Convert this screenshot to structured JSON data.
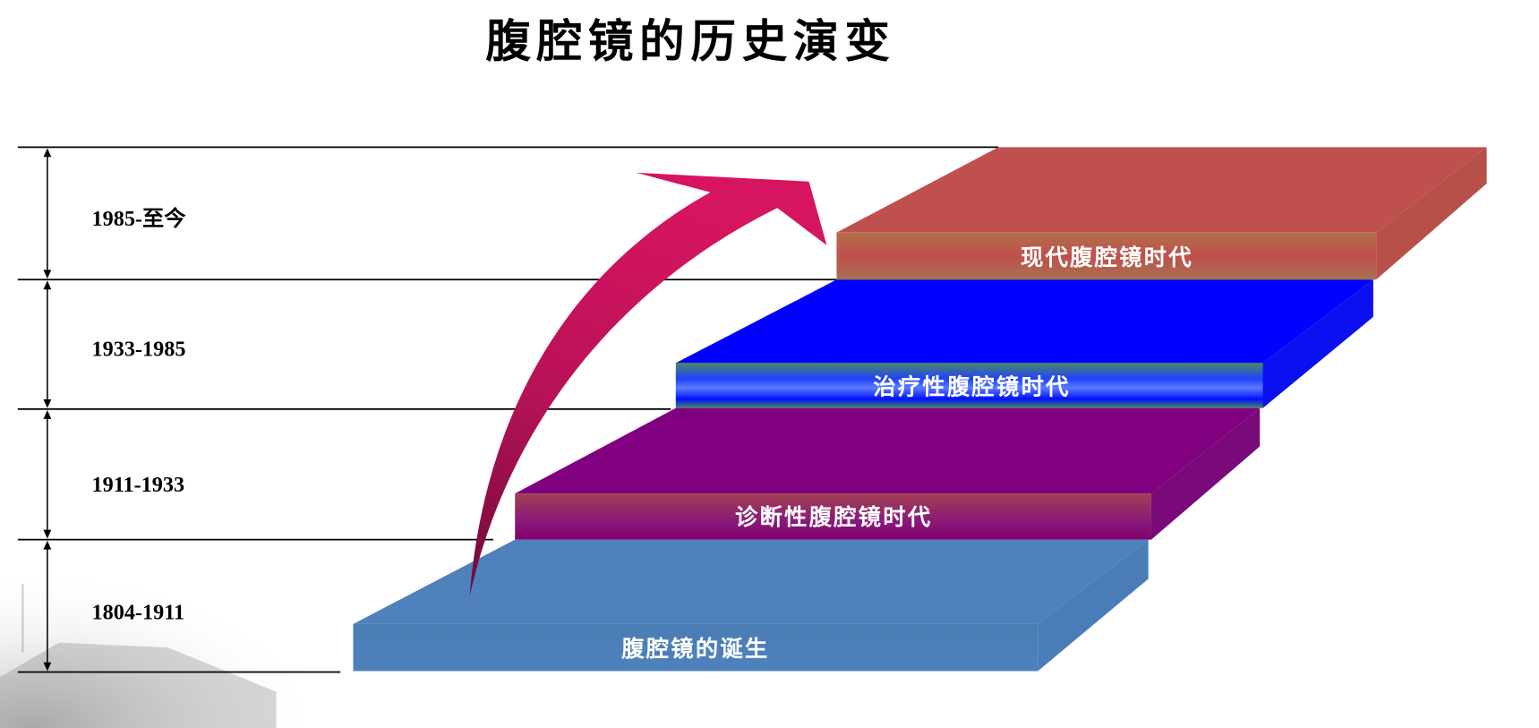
{
  "title": "腹腔镜的历史演变",
  "periods": [
    {
      "label": "1985-至今"
    },
    {
      "label": "1933-1985"
    },
    {
      "label": "1911-1933"
    },
    {
      "label": "1804-1911"
    }
  ],
  "steps": [
    {
      "label": "腹腔镜的诞生",
      "color": "#4f81bd"
    },
    {
      "label": "诊断性腹腔镜时代",
      "color": "#800080"
    },
    {
      "label": "治疗性腹腔镜时代",
      "color": "#0000ff"
    },
    {
      "label": "现代腹腔镜时代",
      "color": "#c0504d"
    }
  ],
  "arrow_color": "#d0145f"
}
